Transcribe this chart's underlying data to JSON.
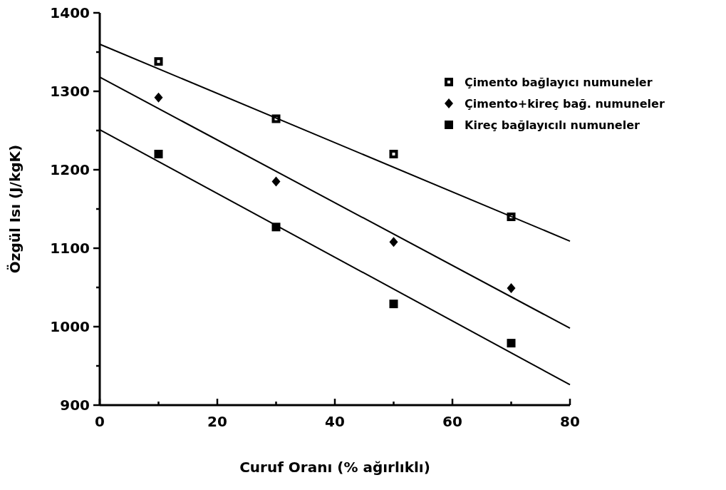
{
  "chart_data": {
    "type": "scatter",
    "xlabel": "Curuf Oranı (% ağırlıklı)",
    "ylabel": "Özgül Isı (J/kgK)",
    "xlim": [
      0,
      80
    ],
    "ylim": [
      900,
      1400
    ],
    "xticks": [
      0,
      {
        "value": 10,
        "label": null
      },
      20,
      {
        "value": 30,
        "label": null
      },
      40,
      {
        "value": 50,
        "label": null
      },
      60,
      {
        "value": 70,
        "label": null
      },
      80
    ],
    "yticks": [
      900,
      {
        "value": 950,
        "label": null
      },
      1000,
      {
        "value": 1050,
        "label": null
      },
      1100,
      {
        "value": 1150,
        "label": null
      },
      1200,
      {
        "value": 1250,
        "label": null
      },
      1300,
      {
        "value": 1350,
        "label": null
      },
      1400
    ],
    "grid": false,
    "legend": "top right",
    "series": [
      {
        "name": "Çimento bağlayıcı numuneler",
        "color": "#000000",
        "marker": "square",
        "x": [
          10,
          30,
          50,
          70
        ],
        "values": [
          1338,
          1265,
          1220,
          1140
        ]
      },
      {
        "name": "Çimento+kireç bağ. numuneler",
        "color": "#000000",
        "marker": "diamond",
        "x": [
          10,
          30,
          50,
          70
        ],
        "values": [
          1292,
          1185,
          1108,
          1049
        ]
      },
      {
        "name": "Kireç bağlayıcılı numuneler",
        "color": "#000000",
        "marker": "square",
        "x": [
          10,
          30,
          50,
          70
        ],
        "values": [
          1220,
          1127,
          1029,
          979
        ]
      },
      {
        "type": "line",
        "color": "#000000",
        "x": [
          0,
          80
        ],
        "values": [
          1360,
          1109
        ]
      },
      {
        "type": "line",
        "color": "#000000",
        "x": [
          0,
          80
        ],
        "values": [
          1318,
          998
        ]
      },
      {
        "type": "line",
        "color": "#000000",
        "x": [
          0,
          80
        ],
        "values": [
          1251,
          926
        ]
      }
    ]
  }
}
